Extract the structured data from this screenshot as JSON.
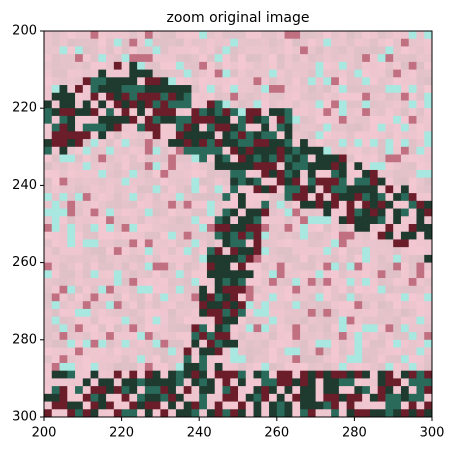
{
  "chart_data": {
    "type": "image",
    "title": "zoom original image",
    "xlim": [
      200,
      300
    ],
    "xticks": [
      200,
      220,
      240,
      260,
      280,
      300
    ],
    "ylim": [
      300,
      200
    ],
    "yticks": [
      200,
      220,
      240,
      260,
      280,
      300
    ]
  }
}
